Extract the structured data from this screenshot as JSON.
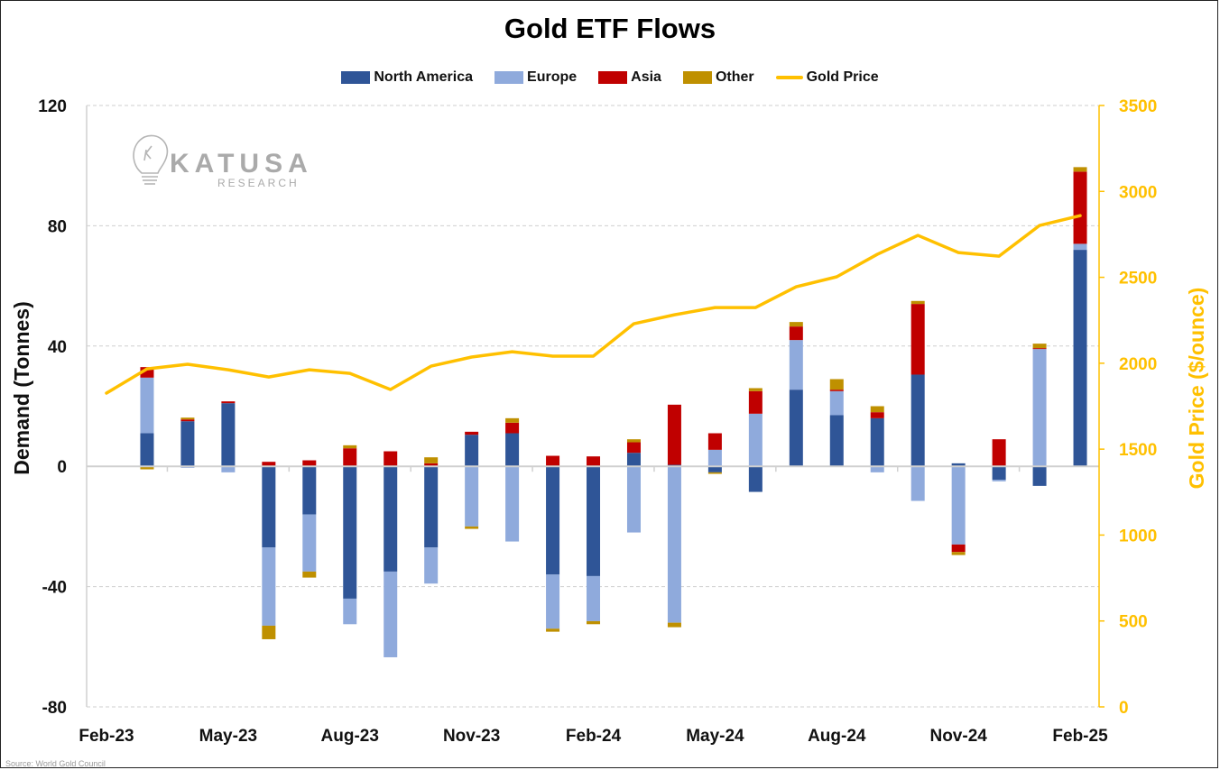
{
  "chart_data": {
    "type": "bar",
    "subtype": "stacked-bar-with-line-secondary-axis",
    "title": "Gold ETF Flows",
    "xlabel": "",
    "ylabel": "Demand (Tonnes)",
    "y2label": "Gold Price ($/ounce)",
    "ylim": [
      -80,
      120
    ],
    "y2lim": [
      0,
      3500
    ],
    "yticks": [
      -80,
      -40,
      0,
      40,
      80,
      120
    ],
    "y2ticks": [
      0,
      500,
      1000,
      1500,
      2000,
      2500,
      3000,
      3500
    ],
    "grid": true,
    "legend_position": "top-center",
    "x_tick_labels": [
      "Feb-23",
      "May-23",
      "Aug-23",
      "Nov-23",
      "Feb-24",
      "May-24",
      "Aug-24",
      "Nov-24",
      "Feb-25"
    ],
    "categories": [
      "Feb-23",
      "Mar-23",
      "Apr-23",
      "May-23",
      "Jun-23",
      "Jul-23",
      "Aug-23",
      "Sep-23",
      "Oct-23",
      "Nov-23",
      "Dec-23",
      "Jan-24",
      "Feb-24",
      "Mar-24",
      "Apr-24",
      "May-24",
      "Jun-24",
      "Jul-24",
      "Aug-24",
      "Sep-24",
      "Oct-24",
      "Nov-24",
      "Dec-24",
      "Jan-25",
      "Feb-25"
    ],
    "series": [
      {
        "name": "North America",
        "type": "bar",
        "axis": "left",
        "color": "#2F5597",
        "values": [
          null,
          11,
          15,
          21,
          -27,
          -16,
          -44,
          -35,
          -27,
          10.5,
          11,
          -36,
          -36.5,
          4.5,
          0.5,
          -2,
          -8.5,
          25.5,
          17,
          16,
          30.5,
          1,
          -4.5,
          -6.5,
          72
        ]
      },
      {
        "name": "Europe",
        "type": "bar",
        "axis": "left",
        "color": "#8FAADC",
        "values": [
          null,
          18.5,
          -0.5,
          -2,
          -26,
          -19,
          -8.5,
          -28.5,
          -12,
          -20,
          -25,
          -18,
          -15,
          -22,
          -52,
          5.5,
          17.5,
          16.5,
          8,
          -2,
          -11.5,
          -26,
          -0.5,
          39,
          2
        ]
      },
      {
        "name": "Asia",
        "type": "bar",
        "axis": "left",
        "color": "#C00000",
        "values": [
          null,
          3.5,
          0.6,
          0.6,
          1.5,
          2,
          6,
          5,
          1,
          1,
          3.5,
          3.5,
          3.3,
          3.5,
          20,
          5.5,
          7.5,
          4.5,
          0.5,
          2,
          23.5,
          -2.5,
          9,
          0.3,
          24
        ]
      },
      {
        "name": "Other",
        "type": "bar",
        "axis": "left",
        "color": "#BF9000",
        "values": [
          null,
          -1,
          0.6,
          0,
          -4.5,
          -2,
          1,
          0,
          2,
          -0.8,
          1.5,
          -1,
          -1,
          1,
          -1.5,
          -0.5,
          1,
          1.5,
          3.5,
          2,
          1,
          -1,
          0,
          1.5,
          1.5
        ]
      },
      {
        "name": "Gold Price",
        "type": "line",
        "axis": "right",
        "color": "#FFC000",
        "values": [
          1826,
          1967,
          1994,
          1962,
          1920,
          1962,
          1941,
          1847,
          1983,
          2036,
          2067,
          2041,
          2041,
          2230,
          2282,
          2324,
          2324,
          2445,
          2503,
          2634,
          2744,
          2644,
          2623,
          2802,
          2859
        ]
      }
    ]
  },
  "watermark": {
    "brand": "KATUSA",
    "sub": "RESEARCH"
  },
  "source": "Source: World Gold Council"
}
